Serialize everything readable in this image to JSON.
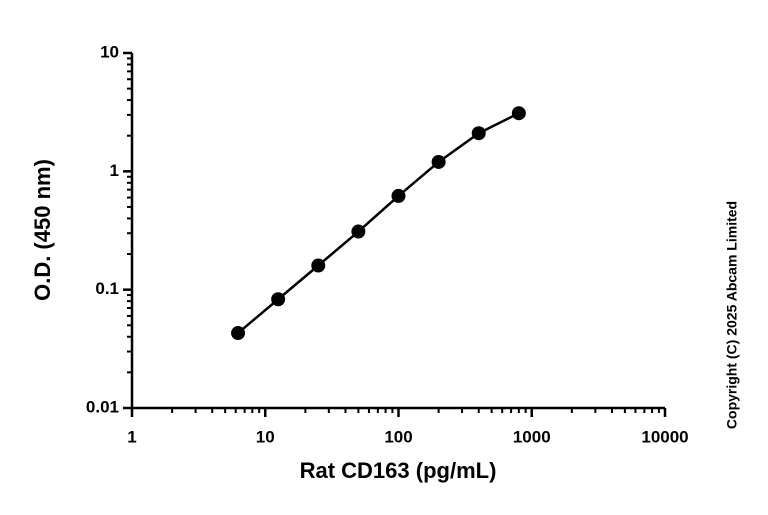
{
  "chart_data": {
    "type": "scatter",
    "x_label": "Rat CD163 (pg/mL)",
    "y_label": "O.D. (450 nm)",
    "annotation": "Copyright (C) 2025 Abcam Limited",
    "x_log": true,
    "y_log": true,
    "xlim": [
      1,
      10000
    ],
    "ylim": [
      0.01,
      10
    ],
    "xticks": [
      1,
      10,
      100,
      1000,
      10000
    ],
    "yticks": [
      0.01,
      0.1,
      1,
      10
    ],
    "xminorticks": [
      2,
      3,
      4,
      5,
      6,
      7,
      8,
      9,
      20,
      30,
      40,
      50,
      60,
      70,
      80,
      90,
      200,
      300,
      400,
      500,
      600,
      700,
      800,
      900,
      2000,
      3000,
      4000,
      5000,
      6000,
      7000,
      8000,
      9000
    ],
    "yminorticks": [
      0.02,
      0.03,
      0.04,
      0.05,
      0.06,
      0.07,
      0.08,
      0.09,
      0.2,
      0.3,
      0.4,
      0.5,
      0.6,
      0.7,
      0.8,
      0.9,
      2,
      3,
      4,
      5,
      6,
      7,
      8,
      9
    ],
    "color": "#000000",
    "series": [
      {
        "x": [
          6.25,
          12.5,
          25,
          50,
          100,
          200,
          400,
          800
        ],
        "values": [
          0.043,
          0.083,
          0.16,
          0.31,
          0.62,
          1.2,
          2.1,
          3.1
        ]
      }
    ]
  }
}
